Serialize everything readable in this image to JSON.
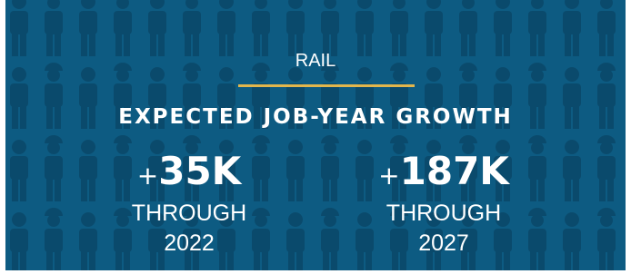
{
  "sector": "RAIL",
  "title": "EXPECTED JOB-YEAR GROWTH",
  "stats": [
    {
      "value": "+35K",
      "label": "THROUGH",
      "year": "2022"
    },
    {
      "value": "+187K",
      "label": "THROUGH",
      "year": "2027"
    }
  ]
}
